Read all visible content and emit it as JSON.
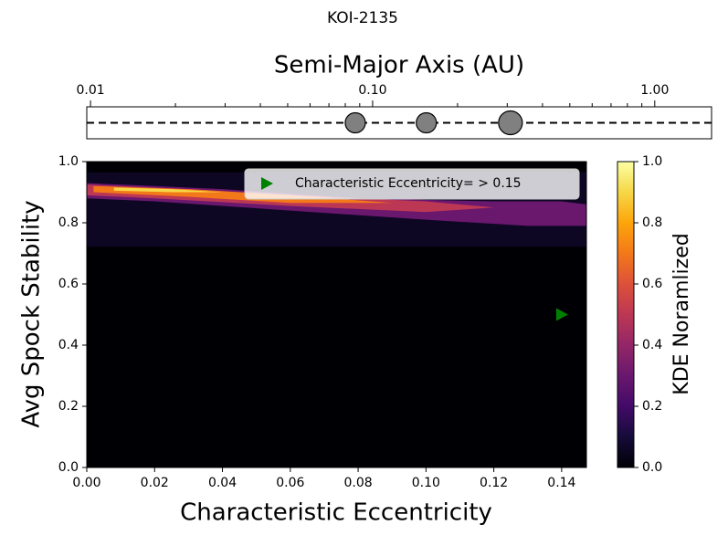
{
  "chart_data": [
    {
      "type": "orbit",
      "title": "KOI-2135",
      "xlabel": "Semi-Major Axis (AU)",
      "xscale": "log",
      "xlim": [
        0.0097,
        1.59
      ],
      "xticks": [
        {
          "value": 0.01,
          "label": "0.01"
        },
        {
          "value": 0.1,
          "label": "0.10"
        },
        {
          "value": 1,
          "label": "1.00"
        }
      ],
      "minor_xticks": [
        0.02,
        0.03,
        0.04,
        0.05,
        0.06,
        0.07,
        0.08,
        0.09,
        0.2,
        0.3,
        0.4,
        0.5,
        0.6,
        0.7,
        0.8,
        0.9
      ],
      "series": [
        {
          "x": [
            0.0868,
            0.155,
            0.308
          ],
          "sizes": [
            11,
            11,
            13
          ],
          "color": "#808080"
        }
      ]
    },
    {
      "type": "contour",
      "xlabel": "Characteristic Eccentricity",
      "ylabel": "Avg Spock Stability",
      "xlim": [
        0,
        0.1473
      ],
      "ylim": [
        0,
        1
      ],
      "colormap": "inferno",
      "xticks": [
        {
          "value": 0,
          "label": "0.00"
        },
        {
          "value": 0.02,
          "label": "0.02"
        },
        {
          "value": 0.04,
          "label": "0.04"
        },
        {
          "value": 0.06,
          "label": "0.06"
        },
        {
          "value": 0.08,
          "label": "0.08"
        },
        {
          "value": 0.1,
          "label": "0.10"
        },
        {
          "value": 0.12,
          "label": "0.12"
        },
        {
          "value": 0.14,
          "label": "0.14"
        }
      ],
      "yticks": [
        {
          "value": 0,
          "label": "0.0"
        },
        {
          "value": 0.2,
          "label": "0.2"
        },
        {
          "value": 0.4,
          "label": "0.4"
        },
        {
          "value": 0.6,
          "label": "0.6"
        },
        {
          "value": 0.8,
          "label": "0.8"
        },
        {
          "value": 1,
          "label": "1.0"
        }
      ],
      "contours": [
        {
          "level": 0.06,
          "x": [
            0,
            0.1473,
            0.1473,
            0
          ],
          "y": [
            0.722,
            0.722,
            0.965,
            0.965
          ]
        },
        {
          "level": 0.3,
          "x": [
            0,
            0.04,
            0.08,
            0.12,
            0.14,
            0.1473,
            0.1473,
            0.13,
            0.1,
            0.06,
            0.02,
            0
          ],
          "y": [
            0.93,
            0.91,
            0.88,
            0.87,
            0.87,
            0.86,
            0.79,
            0.79,
            0.81,
            0.84,
            0.87,
            0.88
          ]
        },
        {
          "level": 0.5,
          "x": [
            0,
            0.03,
            0.07,
            0.1,
            0.12,
            0.1,
            0.06,
            0.02,
            0
          ],
          "y": [
            0.925,
            0.91,
            0.885,
            0.87,
            0.85,
            0.835,
            0.855,
            0.88,
            0.89
          ]
        },
        {
          "level": 0.7,
          "x": [
            0.002,
            0.03,
            0.06,
            0.09,
            0.06,
            0.03,
            0.002
          ],
          "y": [
            0.92,
            0.91,
            0.89,
            0.865,
            0.865,
            0.885,
            0.9
          ]
        },
        {
          "level": 0.9,
          "x": [
            0.008,
            0.025,
            0.04,
            0.025,
            0.008
          ],
          "y": [
            0.915,
            0.91,
            0.9,
            0.9,
            0.905
          ]
        }
      ],
      "series": [
        {
          "name": "Characteristic Eccentricity= > 0.15",
          "color": "#008000",
          "x": [
            0.14
          ],
          "values": [
            0.5
          ]
        }
      ],
      "legend": "upper right"
    },
    {
      "type": "colorbar",
      "ylabel": "KDE Noramlized",
      "colormap": "inferno",
      "ylim": [
        0,
        1
      ],
      "yticks": [
        {
          "value": 0,
          "label": "0.0"
        },
        {
          "value": 0.2,
          "label": "0.2"
        },
        {
          "value": 0.4,
          "label": "0.4"
        },
        {
          "value": 0.6,
          "label": "0.6"
        },
        {
          "value": 0.8,
          "label": "0.8"
        },
        {
          "value": 1,
          "label": "1.0"
        }
      ]
    }
  ]
}
